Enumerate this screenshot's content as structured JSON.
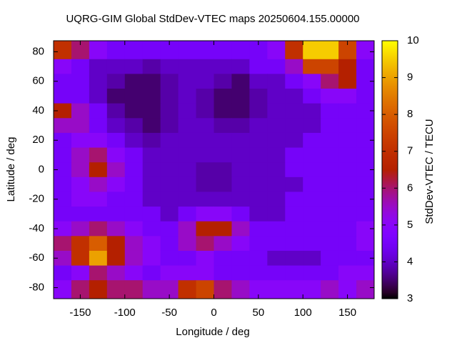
{
  "chart_data": {
    "type": "heatmap",
    "title": "UQRG-GIM Global StdDev-VTEC maps 20250604.155.00000",
    "xlabel": "Longitude / deg",
    "ylabel": "Latitude / deg",
    "colorbar_label": "StdDev-VTEC / TECU",
    "colormap": "gnuplot",
    "xlim": [
      -180,
      180
    ],
    "ylim": [
      -87.5,
      87.5
    ],
    "cblim": [
      3,
      10
    ],
    "xticks": [
      -150,
      -100,
      -50,
      0,
      50,
      100,
      150
    ],
    "yticks": [
      -80,
      -60,
      -40,
      -20,
      0,
      20,
      40,
      60,
      80
    ],
    "cbticks": [
      3,
      4,
      5,
      6,
      7,
      8,
      9,
      10
    ],
    "x": [
      -170,
      -150,
      -130,
      -110,
      -90,
      -70,
      -50,
      -30,
      -10,
      10,
      30,
      50,
      70,
      90,
      110,
      130,
      150,
      170
    ],
    "y": [
      80,
      70,
      60,
      50,
      40,
      30,
      20,
      10,
      0,
      -10,
      -20,
      -30,
      -40,
      -50,
      -60,
      -70,
      -80
    ],
    "z": [
      [
        7,
        6,
        5,
        4.5,
        4.5,
        4.5,
        4.5,
        4.5,
        4.5,
        4.5,
        4.5,
        4.5,
        5,
        7,
        9.5,
        9.5,
        7.5,
        5
      ],
      [
        5,
        4.5,
        4,
        4,
        4,
        3.8,
        4,
        4,
        4,
        4,
        4,
        4.5,
        4.5,
        5.5,
        7.5,
        7.5,
        6.5,
        4.5
      ],
      [
        4.5,
        4.5,
        4,
        3.8,
        3.5,
        3.5,
        3.8,
        4,
        4,
        3.8,
        3.5,
        4,
        4,
        4.5,
        5,
        6,
        6.5,
        4.5
      ],
      [
        4.5,
        4.5,
        4,
        3.5,
        3.5,
        3.5,
        3.8,
        4,
        3.8,
        3.5,
        3.5,
        3.8,
        4,
        4,
        4.5,
        5,
        5,
        4.5
      ],
      [
        6.5,
        5.5,
        4.5,
        3.8,
        3.5,
        3.5,
        3.8,
        4,
        3.8,
        3.5,
        3.5,
        3.8,
        4,
        4,
        4,
        4.5,
        4.5,
        4.5
      ],
      [
        5.5,
        5.5,
        4.5,
        4,
        3.8,
        3.5,
        3.8,
        4,
        4,
        3.8,
        3.8,
        4,
        4,
        4,
        4,
        4.5,
        4.5,
        4.5
      ],
      [
        4.5,
        5,
        5,
        4.5,
        4,
        3.8,
        4,
        4,
        4,
        4,
        4,
        4,
        4,
        4,
        4.5,
        4.5,
        4.5,
        4.5
      ],
      [
        4.5,
        5.5,
        6,
        5,
        4.5,
        4,
        4,
        4,
        4,
        4,
        4,
        4,
        4,
        4.5,
        4.5,
        4.5,
        4.5,
        4.5
      ],
      [
        4.5,
        5.5,
        6.5,
        5.5,
        4.5,
        4,
        4,
        4,
        3.8,
        3.8,
        4,
        4,
        4,
        4.5,
        4.5,
        4.5,
        4.5,
        4.5
      ],
      [
        4.5,
        5,
        5.5,
        5,
        4.5,
        4,
        4,
        4,
        3.8,
        3.8,
        4,
        4,
        4,
        4,
        4.5,
        4.5,
        4.5,
        4.5
      ],
      [
        4.5,
        5,
        5,
        4.5,
        4.5,
        4,
        4,
        4,
        4,
        4,
        4,
        4,
        4,
        4.5,
        4.5,
        4.5,
        4.5,
        4.5
      ],
      [
        4.5,
        4.5,
        4.5,
        4.5,
        4.5,
        4.5,
        4,
        4.5,
        5,
        5,
        4.5,
        4,
        4,
        4.5,
        4.5,
        4.5,
        4.5,
        4.5
      ],
      [
        5,
        5.5,
        6,
        5.5,
        5,
        4.5,
        4.5,
        5.5,
        6.5,
        6.5,
        5.5,
        4.5,
        4.5,
        4.5,
        4.5,
        4.5,
        4.5,
        5
      ],
      [
        6,
        7,
        8,
        6.5,
        5.5,
        5,
        4.5,
        5.5,
        6,
        5.5,
        5,
        4.5,
        4.5,
        4.5,
        4.5,
        4.5,
        4.5,
        5
      ],
      [
        5.5,
        7,
        9,
        6.5,
        5.5,
        5,
        4.5,
        4.5,
        5,
        4.5,
        4.5,
        4.5,
        4,
        4,
        4,
        4.5,
        4.5,
        4.5
      ],
      [
        4.5,
        5,
        6,
        5.5,
        5,
        4.5,
        5,
        5,
        5,
        4.5,
        4.5,
        4.5,
        4.5,
        4.5,
        4.5,
        4.5,
        5,
        5
      ],
      [
        5,
        6,
        6.5,
        6,
        6,
        5.5,
        5.5,
        7,
        7.5,
        6,
        5.5,
        5,
        5,
        5,
        5,
        5.5,
        5,
        5.5
      ]
    ]
  }
}
